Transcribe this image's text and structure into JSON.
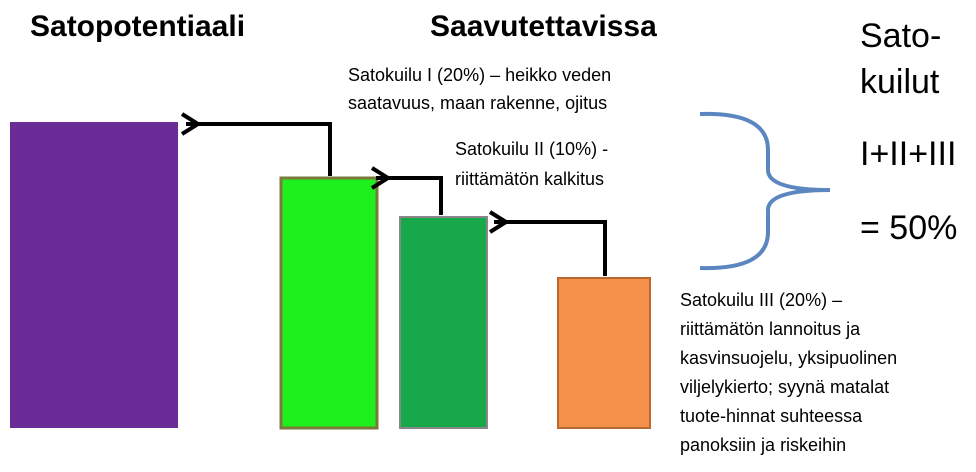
{
  "titles": {
    "potential": "Satopotentiaali",
    "achievable": "Saavutettavissa"
  },
  "gaps": [
    {
      "lines": [
        "Satokuilu I (20%) – heikko veden",
        "saatavuus, maan rakenne, ojitus"
      ]
    },
    {
      "lines": [
        "Satokuilu II (10%)  -",
        "riittämätön kalkitus"
      ]
    },
    {
      "lines": [
        "Satokuilu III (20%) –",
        "riittämätön lannoitus ja",
        "kasvinsuojelu, yksipuolinen",
        "viljelykierto; syynä matalat",
        "tuote-hinnat suhteessa",
        "panoksiin ja riskeihin"
      ]
    }
  ],
  "summary": {
    "lines": [
      "Sato-",
      "kuilut",
      "I+II+III",
      "= 50%"
    ]
  }
}
